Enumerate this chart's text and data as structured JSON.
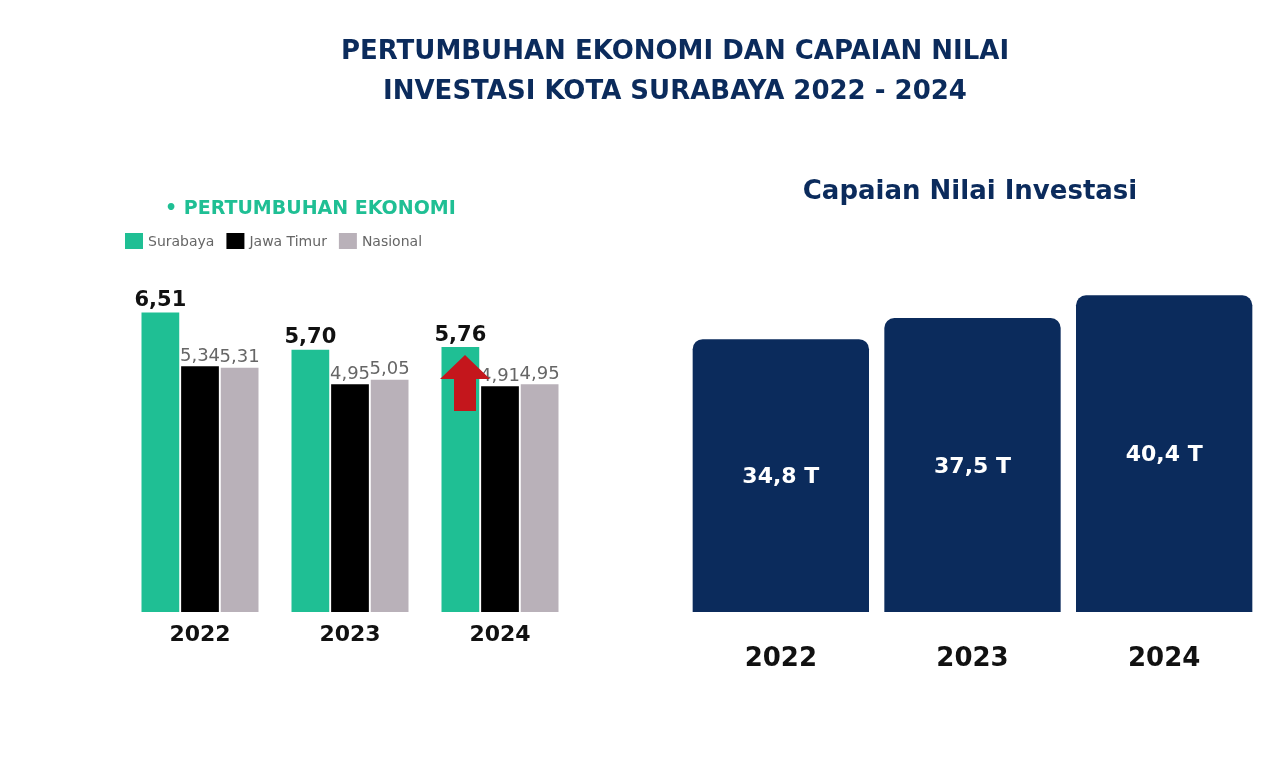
{
  "chart_data": [
    {
      "type": "bar",
      "title": "PERTUMBUHAN EKONOMI DAN CAPAIAN NILAI INVESTASI KOTA SURABAYA 2022 - 2024",
      "subtitle": "• PERTUMBUHAN EKONOMI",
      "categories": [
        "2022",
        "2023",
        "2024"
      ],
      "series": [
        {
          "name": "Surabaya",
          "color": "#1fbf94",
          "values": [
            6.51,
            5.7,
            5.76
          ],
          "value_labels": [
            "6,51",
            "5,70",
            "5,76"
          ]
        },
        {
          "name": "Jawa Timur",
          "color": "#000000",
          "values": [
            5.34,
            4.95,
            4.91
          ],
          "value_labels": [
            "5,34",
            "4,95",
            "4,91"
          ]
        },
        {
          "name": "Nasional",
          "color": "#b9b1b9",
          "values": [
            5.31,
            5.05,
            4.95
          ],
          "value_labels": [
            "5,31",
            "5,05",
            "4,95"
          ]
        }
      ],
      "legend": "top left",
      "grid": false
    },
    {
      "type": "bar",
      "title": "Capaian Nilai Investasi",
      "categories": [
        "2022",
        "2023",
        "2024"
      ],
      "color": "#0b2b5c",
      "values": [
        34.8,
        37.5,
        40.4
      ],
      "value_labels": [
        "34,8 T",
        "37,5 T",
        "40,4 T"
      ],
      "legend": false,
      "grid": false
    }
  ]
}
